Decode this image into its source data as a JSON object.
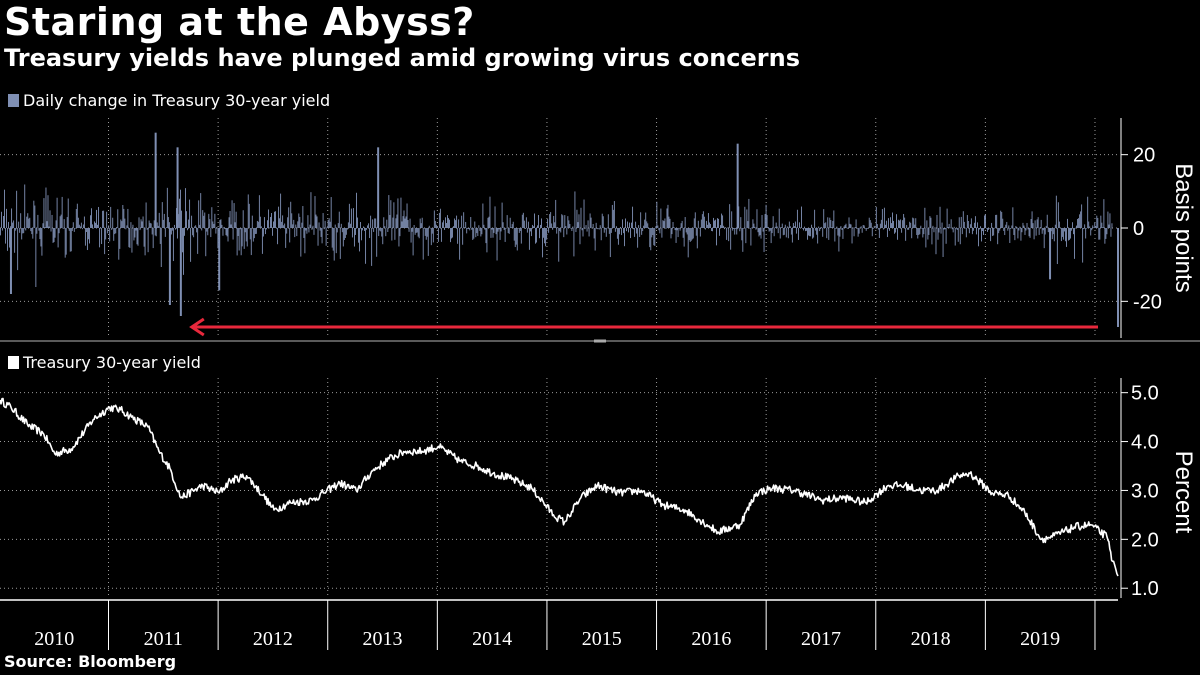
{
  "title": "Staring at the Abyss?",
  "subtitle": "Treasury yields have plunged amid growing virus concerns",
  "source": "Source: Bloomberg",
  "colors": {
    "background": "#000000",
    "bar": "#7f8fb3",
    "line": "#ffffff",
    "arrow": "#e8283c",
    "grid": "#9a9a9a"
  },
  "chart_data": [
    {
      "type": "bar",
      "legend": "Daily change in Treasury 30-year yield",
      "ylabel": "Basis points",
      "ylim": [
        -30,
        30
      ],
      "yticks": [
        20,
        0,
        -20
      ],
      "xlim": [
        2010.0,
        2020.2
      ],
      "grid": true,
      "notable_points": [
        {
          "x": 2011.42,
          "y": 26
        },
        {
          "x": 2011.62,
          "y": 22
        },
        {
          "x": 2011.65,
          "y": -24
        },
        {
          "x": 2011.55,
          "y": -21
        },
        {
          "x": 2013.45,
          "y": 22
        },
        {
          "x": 2016.73,
          "y": 23
        },
        {
          "x": 2012.0,
          "y": -17
        },
        {
          "x": 2010.1,
          "y": -18
        },
        {
          "x": 2019.58,
          "y": -14
        },
        {
          "x": 2020.2,
          "y": -27
        }
      ],
      "annotation": {
        "type": "arrow",
        "from": {
          "x": 2020.2,
          "y": -27
        },
        "to": {
          "x": 2011.75,
          "y": -27
        }
      }
    },
    {
      "type": "line",
      "legend": "Treasury 30-year yield",
      "ylabel": "Percent",
      "ylim": [
        0.8,
        5.3
      ],
      "yticks": [
        "5.0",
        "4.0",
        "3.0",
        "2.0",
        "1.0"
      ],
      "xlim": [
        2010.0,
        2020.2
      ],
      "grid": true,
      "x": [
        2010.0,
        2010.1,
        2010.25,
        2010.4,
        2010.5,
        2010.65,
        2010.85,
        2011.0,
        2011.1,
        2011.2,
        2011.35,
        2011.45,
        2011.55,
        2011.65,
        2011.85,
        2012.0,
        2012.1,
        2012.25,
        2012.4,
        2012.5,
        2012.65,
        2012.85,
        2012.95,
        2013.1,
        2013.25,
        2013.4,
        2013.55,
        2013.7,
        2013.85,
        2014.0,
        2014.2,
        2014.35,
        2014.5,
        2014.65,
        2014.85,
        2015.05,
        2015.15,
        2015.3,
        2015.45,
        2015.65,
        2015.85,
        2016.05,
        2016.25,
        2016.45,
        2016.55,
        2016.75,
        2016.9,
        2017.05,
        2017.25,
        2017.5,
        2017.7,
        2017.9,
        2018.1,
        2018.25,
        2018.4,
        2018.55,
        2018.75,
        2018.85,
        2019.05,
        2019.2,
        2019.35,
        2019.5,
        2019.6,
        2019.8,
        2019.95,
        2020.1,
        2020.15,
        2020.2
      ],
      "y": [
        4.85,
        4.7,
        4.35,
        4.15,
        3.75,
        3.85,
        4.45,
        4.7,
        4.65,
        4.5,
        4.3,
        3.8,
        3.45,
        2.85,
        3.1,
        2.95,
        3.2,
        3.3,
        2.9,
        2.6,
        2.75,
        2.8,
        2.95,
        3.15,
        3.0,
        3.4,
        3.65,
        3.8,
        3.8,
        3.9,
        3.6,
        3.5,
        3.35,
        3.25,
        3.05,
        2.5,
        2.35,
        2.85,
        3.1,
        2.95,
        3.0,
        2.7,
        2.6,
        2.3,
        2.15,
        2.3,
        2.95,
        3.05,
        3.0,
        2.8,
        2.85,
        2.75,
        3.1,
        3.1,
        3.0,
        3.0,
        3.3,
        3.35,
        2.95,
        2.9,
        2.55,
        2.0,
        2.05,
        2.25,
        2.3,
        2.05,
        1.55,
        1.25
      ]
    }
  ],
  "x_axis": {
    "labels": [
      "2010",
      "2011",
      "2012",
      "2013",
      "2014",
      "2015",
      "2016",
      "2017",
      "2018",
      "2019"
    ]
  }
}
